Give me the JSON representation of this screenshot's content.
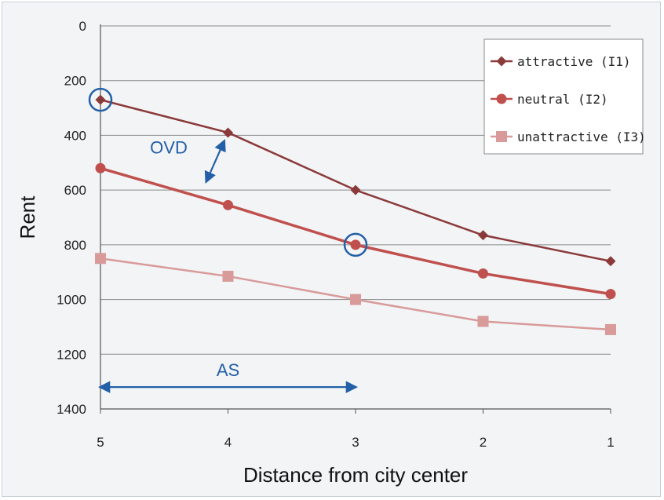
{
  "chart_data": {
    "type": "line",
    "xlabel": "Distance from city center",
    "ylabel": "Rent",
    "x": [
      5,
      4,
      3,
      2,
      1
    ],
    "x_tick_labels": [
      "5",
      "4",
      "3",
      "2",
      "1"
    ],
    "y_tick_labels": [
      "0",
      "200",
      "400",
      "600",
      "800",
      "1000",
      "1200",
      "1400"
    ],
    "ylim": [
      0,
      1400
    ],
    "y_reversed": true,
    "grid": "horizontal",
    "legend_position": "top-right",
    "series": [
      {
        "name": "attractive (I1)",
        "values": [
          270,
          390,
          600,
          765,
          860
        ],
        "color": "#8b3a3a",
        "marker": "diamond"
      },
      {
        "name": "neutral (I2)",
        "values": [
          520,
          655,
          800,
          905,
          980
        ],
        "color": "#c0504d",
        "marker": "circle"
      },
      {
        "name": "unattractive (I3)",
        "values": [
          850,
          915,
          1000,
          1080,
          1110
        ],
        "color": "#d99a9a",
        "marker": "square"
      }
    ],
    "annotations": [
      {
        "label": "OVD",
        "type": "double-arrow",
        "from": {
          "x": 4,
          "y": 390
        },
        "to": {
          "x": 4.2,
          "y": 600
        }
      },
      {
        "label": "AS",
        "type": "double-arrow",
        "from": {
          "x": 5,
          "y": 1320
        },
        "to": {
          "x": 3,
          "y": 1320
        }
      }
    ],
    "highlighted_points": [
      {
        "series": "attractive (I1)",
        "x": 5,
        "y": 270
      },
      {
        "series": "neutral (I2)",
        "x": 3,
        "y": 800
      }
    ],
    "annotation_color": "#2460a7"
  }
}
